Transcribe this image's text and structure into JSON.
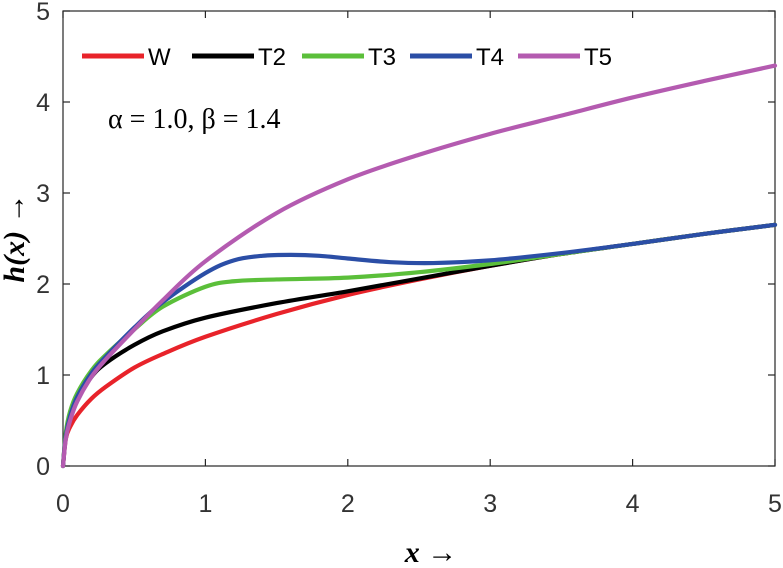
{
  "chart_data": {
    "type": "line",
    "title": "",
    "xlabel": "x →",
    "ylabel": "h(x) →",
    "xlim": [
      0,
      5
    ],
    "ylim": [
      0,
      5
    ],
    "xticks": [
      0,
      1,
      2,
      3,
      4,
      5
    ],
    "yticks": [
      0,
      1,
      2,
      3,
      4,
      5
    ],
    "grid": false,
    "legend_position": "top",
    "annotation": "α = 1.0, β = 1.4",
    "series": [
      {
        "name": "W",
        "color": "#e8232a",
        "x": [
          0,
          0.02,
          0.05,
          0.1,
          0.2,
          0.3,
          0.5,
          0.7,
          1.0,
          1.5,
          2.0,
          2.5,
          3.0,
          3.5,
          4.0,
          4.5,
          5.0
        ],
        "y": [
          0,
          0.3,
          0.43,
          0.56,
          0.74,
          0.87,
          1.08,
          1.23,
          1.42,
          1.67,
          1.88,
          2.05,
          2.2,
          2.33,
          2.44,
          2.55,
          2.65
        ]
      },
      {
        "name": "T2",
        "color": "#000000",
        "x": [
          0,
          0.02,
          0.05,
          0.1,
          0.2,
          0.3,
          0.5,
          0.7,
          1.0,
          1.5,
          2.0,
          2.5,
          3.0,
          3.5,
          4.0,
          4.5,
          5.0
        ],
        "y": [
          0,
          0.35,
          0.55,
          0.74,
          0.98,
          1.13,
          1.33,
          1.48,
          1.63,
          1.79,
          1.92,
          2.06,
          2.2,
          2.33,
          2.44,
          2.55,
          2.65
        ]
      },
      {
        "name": "T3",
        "color": "#5bbf3a",
        "x": [
          0,
          0.02,
          0.05,
          0.1,
          0.2,
          0.3,
          0.5,
          0.7,
          1.0,
          1.2,
          1.5,
          2.0,
          2.5,
          3.0,
          3.5,
          4.0,
          4.5,
          5.0
        ],
        "y": [
          0,
          0.37,
          0.6,
          0.8,
          1.05,
          1.22,
          1.5,
          1.75,
          1.97,
          2.03,
          2.05,
          2.07,
          2.13,
          2.22,
          2.33,
          2.44,
          2.55,
          2.65
        ]
      },
      {
        "name": "T4",
        "color": "#2b4ea6",
        "x": [
          0,
          0.02,
          0.05,
          0.1,
          0.2,
          0.3,
          0.5,
          0.7,
          1.0,
          1.2,
          1.4,
          1.6,
          1.8,
          2.0,
          2.3,
          2.6,
          3.0,
          3.5,
          4.0,
          4.5,
          5.0
        ],
        "y": [
          0,
          0.33,
          0.55,
          0.76,
          1.02,
          1.2,
          1.52,
          1.8,
          2.12,
          2.26,
          2.31,
          2.32,
          2.31,
          2.28,
          2.24,
          2.23,
          2.26,
          2.34,
          2.44,
          2.55,
          2.65
        ]
      },
      {
        "name": "T5",
        "color": "#b45bb0",
        "x": [
          0,
          0.02,
          0.05,
          0.1,
          0.2,
          0.3,
          0.5,
          0.7,
          1.0,
          1.5,
          2.0,
          2.5,
          3.0,
          3.5,
          4.0,
          4.5,
          5.0
        ],
        "y": [
          0,
          0.3,
          0.5,
          0.71,
          0.98,
          1.17,
          1.5,
          1.82,
          2.25,
          2.78,
          3.15,
          3.42,
          3.65,
          3.85,
          4.05,
          4.23,
          4.4
        ]
      }
    ]
  }
}
